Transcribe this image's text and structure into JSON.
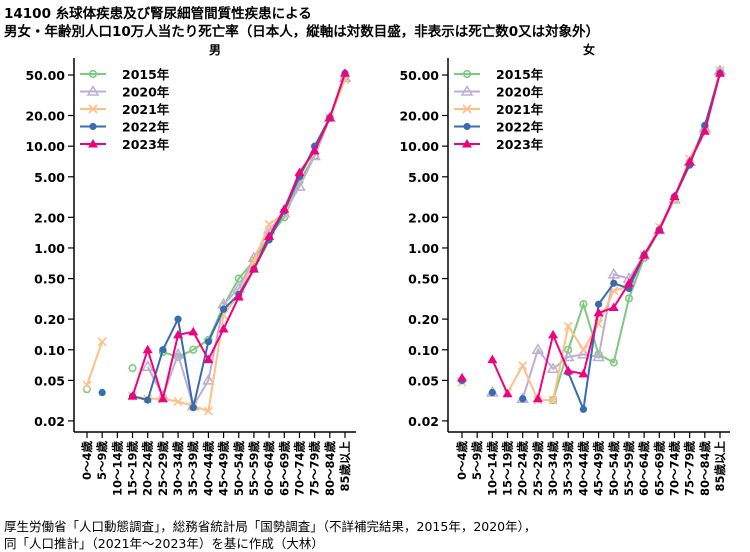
{
  "title": {
    "line1": "14100 糸球体疾患及び腎尿細管間質性疾患による",
    "line2": "男女・年齢別人口10万人当たり死亡率（日本人，縦軸は対数目盛，非表示は死亡数0又は対象外）"
  },
  "footer": {
    "line1": "厚生労働省「人口動態調査」，総務省統計局「国勢調査」（不詳補完結果，2015年，2020年），",
    "line2": "同「人口推計」（2021年～2023年）を基に作成（大林）"
  },
  "chart_data": [
    {
      "type": "line",
      "title": "男",
      "yscale": "log",
      "ylim": [
        0.017,
        62
      ],
      "yticks": [
        "0.02",
        "0.05",
        "0.10",
        "0.20",
        "0.50",
        "1.00",
        "2.00",
        "5.00",
        "10.00",
        "20.00",
        "50.00"
      ],
      "categories": [
        "0～4歳",
        "5～9歳",
        "10～14歳",
        "15～19歳",
        "20～24歳",
        "25～29歳",
        "30～34歳",
        "35～39歳",
        "40～44歳",
        "45～49歳",
        "50～54歳",
        "55～59歳",
        "60～64歳",
        "65～69歳",
        "70～74歳",
        "75～79歳",
        "80～84歳",
        "85歳以上"
      ],
      "legend_position": "top-left",
      "series": [
        {
          "name": "2015年",
          "color": "#7fc97f",
          "marker": "open-circle",
          "values": [
            0.041,
            null,
            null,
            0.066,
            null,
            0.095,
            0.085,
            0.1,
            0.125,
            0.27,
            0.5,
            0.75,
            1.3,
            2.0,
            4.5,
            8,
            19,
            48
          ]
        },
        {
          "name": "2020年",
          "color": "#beaed4",
          "marker": "open-triangle",
          "values": [
            null,
            null,
            null,
            null,
            0.068,
            0.035,
            0.09,
            0.028,
            0.05,
            0.28,
            0.4,
            0.8,
            1.5,
            2.2,
            4,
            8,
            19,
            47
          ]
        },
        {
          "name": "2021年",
          "color": "#fdc086",
          "marker": "x",
          "values": [
            0.045,
            0.12,
            null,
            0.035,
            0.033,
            0.033,
            0.031,
            0.028,
            0.025,
            0.22,
            0.35,
            0.75,
            1.7,
            2.2,
            5,
            9,
            19,
            45
          ]
        },
        {
          "name": "2022年",
          "color": "#386cb0",
          "marker": "filled-circle",
          "values": [
            null,
            0.038,
            null,
            0.035,
            0.032,
            0.1,
            0.2,
            0.027,
            0.12,
            0.25,
            0.35,
            0.62,
            1.2,
            2.3,
            5,
            10,
            19,
            52
          ]
        },
        {
          "name": "2023年",
          "color": "#f0027f",
          "marker": "filled-triangle",
          "values": [
            null,
            null,
            null,
            0.035,
            0.1,
            0.033,
            0.14,
            0.15,
            0.08,
            0.16,
            0.33,
            0.62,
            1.3,
            2.4,
            5.5,
            9,
            19,
            52
          ]
        }
      ]
    },
    {
      "type": "line",
      "title": "女",
      "yscale": "log",
      "ylim": [
        0.017,
        62
      ],
      "yticks": [
        "0.02",
        "0.05",
        "0.10",
        "0.20",
        "0.50",
        "1.00",
        "2.00",
        "5.00",
        "10.00",
        "20.00",
        "50.00"
      ],
      "categories": [
        "0～4歳",
        "5～9歳",
        "10～14歳",
        "15～19歳",
        "20～24歳",
        "25～29歳",
        "30～34歳",
        "35～39歳",
        "40～44歳",
        "45～49歳",
        "50～54歳",
        "55～59歳",
        "60～64歳",
        "65～69歳",
        "70～74歳",
        "75～79歳",
        "80～84歳",
        "85歳以上"
      ],
      "legend_position": "top-left",
      "series": [
        {
          "name": "2015年",
          "color": "#7fc97f",
          "marker": "open-circle",
          "values": [
            0.05,
            null,
            null,
            null,
            null,
            null,
            0.032,
            0.1,
            0.28,
            0.09,
            0.075,
            0.32,
            0.8,
            1.5,
            3,
            7,
            15,
            55
          ]
        },
        {
          "name": "2020年",
          "color": "#beaed4",
          "marker": "open-triangle",
          "values": [
            null,
            null,
            0.038,
            null,
            0.033,
            0.1,
            0.065,
            0.085,
            0.09,
            0.085,
            0.55,
            0.5,
            0.85,
            1.5,
            3,
            7,
            15,
            55
          ]
        },
        {
          "name": "2021年",
          "color": "#fdc086",
          "marker": "x",
          "values": [
            0.048,
            null,
            null,
            0.038,
            0.07,
            0.032,
            0.032,
            0.17,
            0.1,
            0.18,
            0.38,
            0.42,
            0.85,
            1.6,
            3,
            7.5,
            15,
            55
          ]
        },
        {
          "name": "2022年",
          "color": "#386cb0",
          "marker": "filled-circle",
          "values": [
            0.05,
            null,
            0.038,
            null,
            0.033,
            null,
            null,
            0.06,
            0.026,
            0.28,
            0.45,
            0.4,
            0.85,
            1.5,
            3.2,
            6.5,
            16,
            52
          ]
        },
        {
          "name": "2023年",
          "color": "#f0027f",
          "marker": "filled-triangle",
          "values": [
            0.053,
            null,
            0.08,
            0.037,
            null,
            0.033,
            0.14,
            0.062,
            0.058,
            0.23,
            0.26,
            0.45,
            0.85,
            1.5,
            3.2,
            7,
            14,
            52
          ]
        }
      ]
    }
  ]
}
